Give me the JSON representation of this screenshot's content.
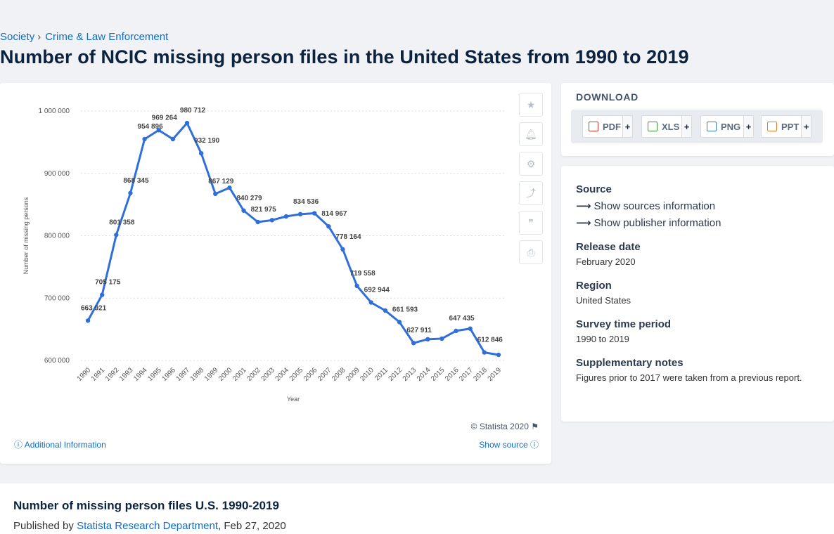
{
  "breadcrumb": {
    "parent": "Society",
    "current": "Crime & Law Enforcement"
  },
  "page_title": "Number of NCIC missing person files in the United States from 1990 to 2019",
  "chart_data": {
    "type": "line",
    "xlabel": "Year",
    "ylabel": "Number of missing persons",
    "ylim": [
      600000,
      1000000
    ],
    "yticks": [
      "600 000",
      "700 000",
      "800 000",
      "900 000",
      "1 000 000"
    ],
    "ytick_values": [
      600000,
      700000,
      800000,
      900000,
      1000000
    ],
    "x": [
      "1990",
      "1991",
      "1992",
      "1993",
      "1994",
      "1995",
      "1996",
      "1997",
      "1998",
      "1999",
      "2000",
      "2001",
      "2002",
      "2003",
      "2004",
      "2005",
      "2006",
      "2007",
      "2008",
      "2009",
      "2010",
      "2011",
      "2012",
      "2013",
      "2014",
      "2015",
      "2016",
      "2017",
      "2018",
      "2019"
    ],
    "values": [
      663921,
      705175,
      801358,
      868345,
      954896,
      969264,
      955000,
      980712,
      932190,
      867129,
      877000,
      840279,
      821975,
      825000,
      831000,
      834536,
      836000,
      814967,
      778164,
      719558,
      692944,
      680000,
      661593,
      627911,
      634000,
      635000,
      647435,
      651000,
      612846,
      609000
    ],
    "data_labels": [
      {
        "i": 0,
        "text": "663 921"
      },
      {
        "i": 1,
        "text": "705 175"
      },
      {
        "i": 2,
        "text": "801 358"
      },
      {
        "i": 3,
        "text": "868 345"
      },
      {
        "i": 4,
        "text": "954 896"
      },
      {
        "i": 5,
        "text": "969 264"
      },
      {
        "i": 7,
        "text": "980 712"
      },
      {
        "i": 8,
        "text": "932 190"
      },
      {
        "i": 9,
        "text": "867 129"
      },
      {
        "i": 11,
        "text": "840 279"
      },
      {
        "i": 12,
        "text": "821 975"
      },
      {
        "i": 15,
        "text": "834 536"
      },
      {
        "i": 17,
        "text": "814 967"
      },
      {
        "i": 18,
        "text": "778 164"
      },
      {
        "i": 19,
        "text": "719 558"
      },
      {
        "i": 20,
        "text": "692 944"
      },
      {
        "i": 22,
        "text": "661 593"
      },
      {
        "i": 23,
        "text": "627 911"
      },
      {
        "i": 26,
        "text": "647 435"
      },
      {
        "i": 28,
        "text": "612 846"
      }
    ],
    "line_color": "#2e6fdc",
    "grid": true
  },
  "chart_footer": {
    "copyright": "© Statista 2020",
    "additional_info": "Additional Information",
    "show_source": "Show source"
  },
  "tools": [
    "star-icon",
    "bell-icon",
    "gear-icon",
    "share-icon",
    "quote-icon",
    "print-icon"
  ],
  "download": {
    "title": "DOWNLOAD",
    "buttons": [
      {
        "label": "PDF",
        "color": "#d9342b"
      },
      {
        "label": "XLS",
        "color": "#3a9a3a"
      },
      {
        "label": "PNG",
        "color": "#3a78c9"
      },
      {
        "label": "PPT",
        "color": "#e07a2a"
      }
    ],
    "plus": "+"
  },
  "info": {
    "source_h": "Source",
    "show_sources": "Show sources information",
    "show_publisher": "Show publisher information",
    "release_h": "Release date",
    "release_v": "February 2020",
    "region_h": "Region",
    "region_v": "United States",
    "survey_h": "Survey time period",
    "survey_v": "1990 to 2019",
    "notes_h": "Supplementary notes",
    "notes_v": "Figures prior to 2017 were taken from a previous report."
  },
  "bottom": {
    "title": "Number of missing person files U.S. 1990-2019",
    "published_prefix": "Published by",
    "publisher": "Statista Research Department",
    "date": ", Feb 27, 2020"
  }
}
